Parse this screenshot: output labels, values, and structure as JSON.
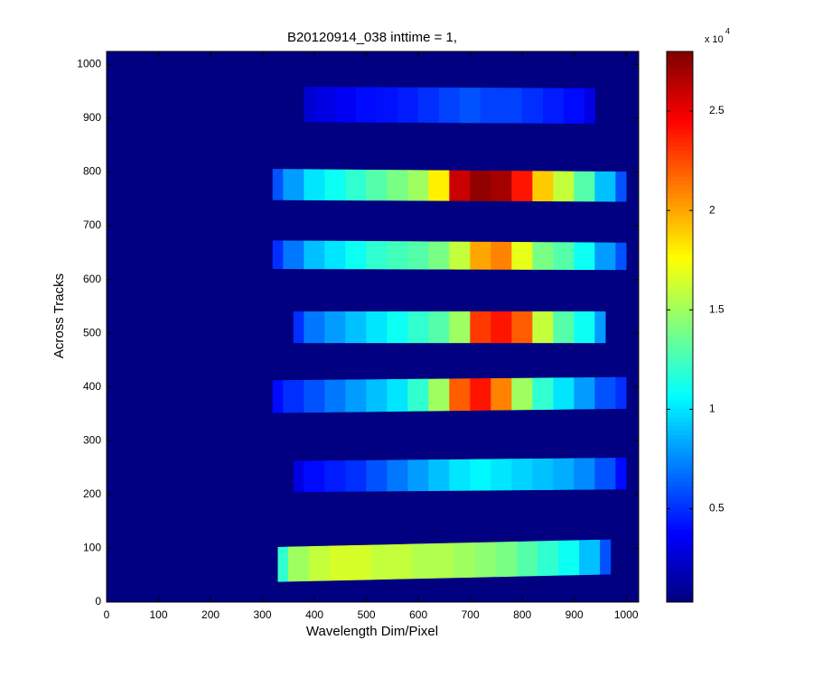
{
  "chart_data": {
    "type": "heatmap",
    "title": "B20120914_038 inttime = 1,",
    "x_label": "Wavelength Dim/Pixel",
    "y_label": "Across Tracks",
    "xlim": [
      0,
      1024
    ],
    "ylim": [
      0,
      1024
    ],
    "xticks": [
      0,
      100,
      200,
      300,
      400,
      500,
      600,
      700,
      800,
      900,
      1000
    ],
    "yticks": [
      0,
      100,
      200,
      300,
      400,
      500,
      600,
      700,
      800,
      900,
      1000
    ],
    "colormap": "jet",
    "clim": [
      300,
      28000
    ],
    "cticks": [
      {
        "value": 5000,
        "label": "0.5"
      },
      {
        "value": 10000,
        "label": "1"
      },
      {
        "value": 15000,
        "label": "1.5"
      },
      {
        "value": 20000,
        "label": "2"
      },
      {
        "value": 25000,
        "label": "2.5"
      }
    ],
    "colorbar_exponent_label": "x 10",
    "colorbar_exponent": "4",
    "background_value": 300,
    "bands": [
      {
        "y_left": [
          893,
          958
        ],
        "y_right": [
          890,
          955
        ],
        "x": [
          380,
          420,
          460,
          500,
          540,
          580,
          620,
          660,
          700,
          740,
          780,
          820,
          860,
          900,
          940
        ],
        "values": [
          2500,
          3000,
          3500,
          4000,
          4200,
          4500,
          5000,
          5500,
          6000,
          5500,
          5500,
          5000,
          4500,
          4000,
          3000
        ]
      },
      {
        "y_left": [
          748,
          805
        ],
        "y_right": [
          745,
          800
        ],
        "x": [
          320,
          360,
          400,
          440,
          480,
          520,
          560,
          600,
          640,
          680,
          720,
          760,
          800,
          840,
          880,
          920,
          960,
          1000
        ],
        "values": [
          6000,
          8000,
          10000,
          11000,
          12000,
          13000,
          14000,
          15000,
          18000,
          26000,
          27500,
          27000,
          24000,
          19000,
          16000,
          13000,
          9000,
          6000
        ]
      },
      {
        "y_left": [
          620,
          672
        ],
        "y_right": [
          618,
          668
        ],
        "x": [
          320,
          360,
          400,
          440,
          480,
          520,
          560,
          600,
          640,
          680,
          720,
          760,
          800,
          840,
          880,
          920,
          960,
          1000
        ],
        "values": [
          5000,
          7000,
          9000,
          10000,
          11000,
          12000,
          12500,
          13000,
          14000,
          16000,
          20000,
          21000,
          17000,
          14000,
          13000,
          11000,
          8000,
          6000
        ]
      },
      {
        "y_left": [
          482,
          540
        ],
        "y_right": [
          482,
          540
        ],
        "x": [
          360,
          400,
          440,
          480,
          520,
          560,
          600,
          640,
          680,
          720,
          760,
          800,
          840,
          880,
          920,
          960
        ],
        "values": [
          5000,
          7000,
          8000,
          9000,
          10000,
          11000,
          12000,
          13000,
          15000,
          23000,
          24000,
          22000,
          16000,
          13000,
          11000,
          8000
        ]
      },
      {
        "y_left": [
          352,
          412
        ],
        "y_right": [
          360,
          418
        ],
        "x": [
          320,
          360,
          400,
          440,
          480,
          520,
          560,
          600,
          640,
          680,
          720,
          760,
          800,
          840,
          880,
          920,
          960,
          1000
        ],
        "values": [
          4000,
          5000,
          6000,
          7000,
          8000,
          9000,
          10000,
          12000,
          15000,
          22000,
          24000,
          21000,
          15000,
          12000,
          10000,
          8000,
          6000,
          5000
        ]
      },
      {
        "y_left": [
          205,
          262
        ],
        "y_right": [
          210,
          268
        ],
        "x": [
          360,
          400,
          440,
          480,
          520,
          560,
          600,
          640,
          680,
          720,
          760,
          800,
          840,
          880,
          920,
          960,
          1000
        ],
        "values": [
          3000,
          4000,
          4500,
          5000,
          6000,
          7000,
          8000,
          9000,
          10000,
          10500,
          10000,
          9500,
          9000,
          8500,
          7500,
          6000,
          4000
        ]
      },
      {
        "y_left": [
          38,
          102
        ],
        "y_right": [
          52,
          116
        ],
        "x": [
          330,
          370,
          410,
          450,
          490,
          530,
          570,
          610,
          650,
          690,
          730,
          770,
          810,
          850,
          890,
          930,
          970
        ],
        "values": [
          12000,
          15000,
          16000,
          16500,
          16500,
          16000,
          16000,
          15500,
          15500,
          15000,
          14500,
          14000,
          13000,
          12000,
          11000,
          9000,
          6000
        ]
      }
    ]
  }
}
